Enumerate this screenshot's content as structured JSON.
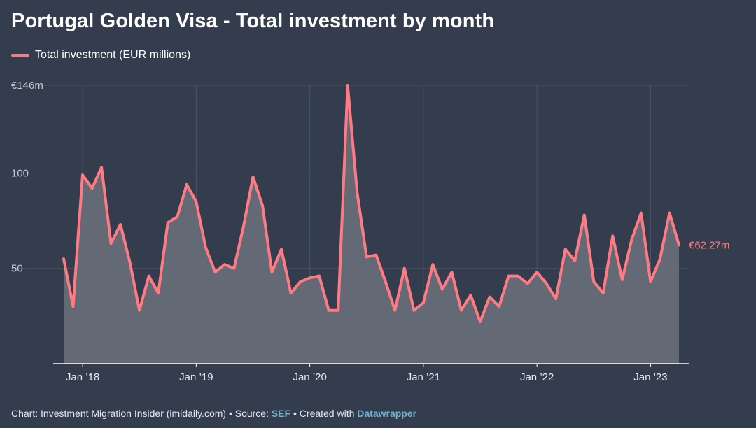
{
  "title": "Portugal Golden Visa - Total investment by month",
  "legend": {
    "label": "Total investment (EUR millions)"
  },
  "footer": {
    "prefix": "Chart: Investment Migration Insider (imidaily.com) • Source: ",
    "source": "SEF",
    "middle": " • Created with ",
    "tool": "Datawrapper"
  },
  "colors": {
    "background": "#333d4d",
    "line": "#ff7b84",
    "area": "#676c78",
    "grid": "#4a5464",
    "link": "#6fb1cf"
  },
  "chart_data": {
    "type": "area",
    "title": "Portugal Golden Visa - Total investment by month",
    "xlabel": "",
    "ylabel": "",
    "ylim": [
      0,
      146
    ],
    "y_ticks": [
      {
        "value": 146,
        "label": "€146m"
      },
      {
        "value": 100,
        "label": "100"
      },
      {
        "value": 50,
        "label": "50"
      }
    ],
    "x_ticks": [
      {
        "value": 2018.0,
        "label": "Jan ’18"
      },
      {
        "value": 2019.0,
        "label": "Jan ’19"
      },
      {
        "value": 2020.0,
        "label": "Jan ’20"
      },
      {
        "value": 2021.0,
        "label": "Jan ’21"
      },
      {
        "value": 2022.0,
        "label": "Jan ’22"
      },
      {
        "value": 2023.0,
        "label": "Jan ’23"
      }
    ],
    "x_start": 2017.833,
    "x_end": 2023.25,
    "end_label": "€62.27m",
    "series": [
      {
        "name": "Total investment (EUR millions)",
        "values": [
          55,
          30,
          99,
          92,
          103,
          63,
          73,
          53,
          28,
          46,
          37,
          74,
          77,
          94,
          85,
          61,
          48,
          52,
          50,
          72,
          98,
          83,
          48,
          60,
          37,
          43,
          45,
          46,
          28,
          28,
          146,
          90,
          56,
          57,
          43,
          28,
          50,
          28,
          32,
          52,
          39,
          48,
          28,
          36,
          22,
          35,
          30,
          46,
          46,
          42,
          48,
          42,
          34,
          60,
          54,
          78,
          43,
          37,
          67,
          44,
          65,
          79,
          43,
          55,
          79,
          62.27
        ]
      }
    ]
  }
}
